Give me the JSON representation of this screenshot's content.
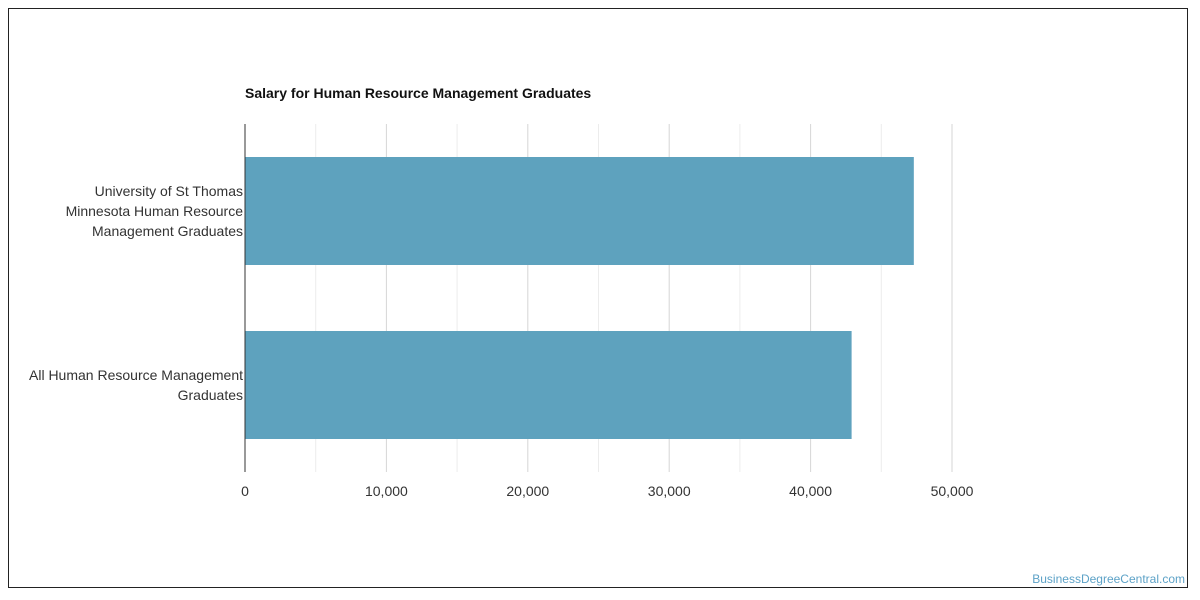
{
  "chart_data": {
    "type": "bar",
    "orientation": "horizontal",
    "title": "Salary for Human Resource Management Graduates",
    "categories": [
      [
        "University of St Thomas",
        "Minnesota Human Resource",
        "Management Graduates"
      ],
      [
        "All Human Resource Management",
        "Graduates"
      ]
    ],
    "values": [
      47300,
      42900
    ],
    "xlim": [
      0,
      50000
    ],
    "xticks": [
      0,
      10000,
      20000,
      30000,
      40000,
      50000
    ],
    "xtick_labels": [
      "0",
      "10,000",
      "20,000",
      "30,000",
      "40,000",
      "50,000"
    ],
    "xlabel": "",
    "ylabel": "",
    "grid": true,
    "bar_color": "#5ea2be"
  },
  "footer": {
    "credit": "BusinessDegreeCentral.com"
  }
}
